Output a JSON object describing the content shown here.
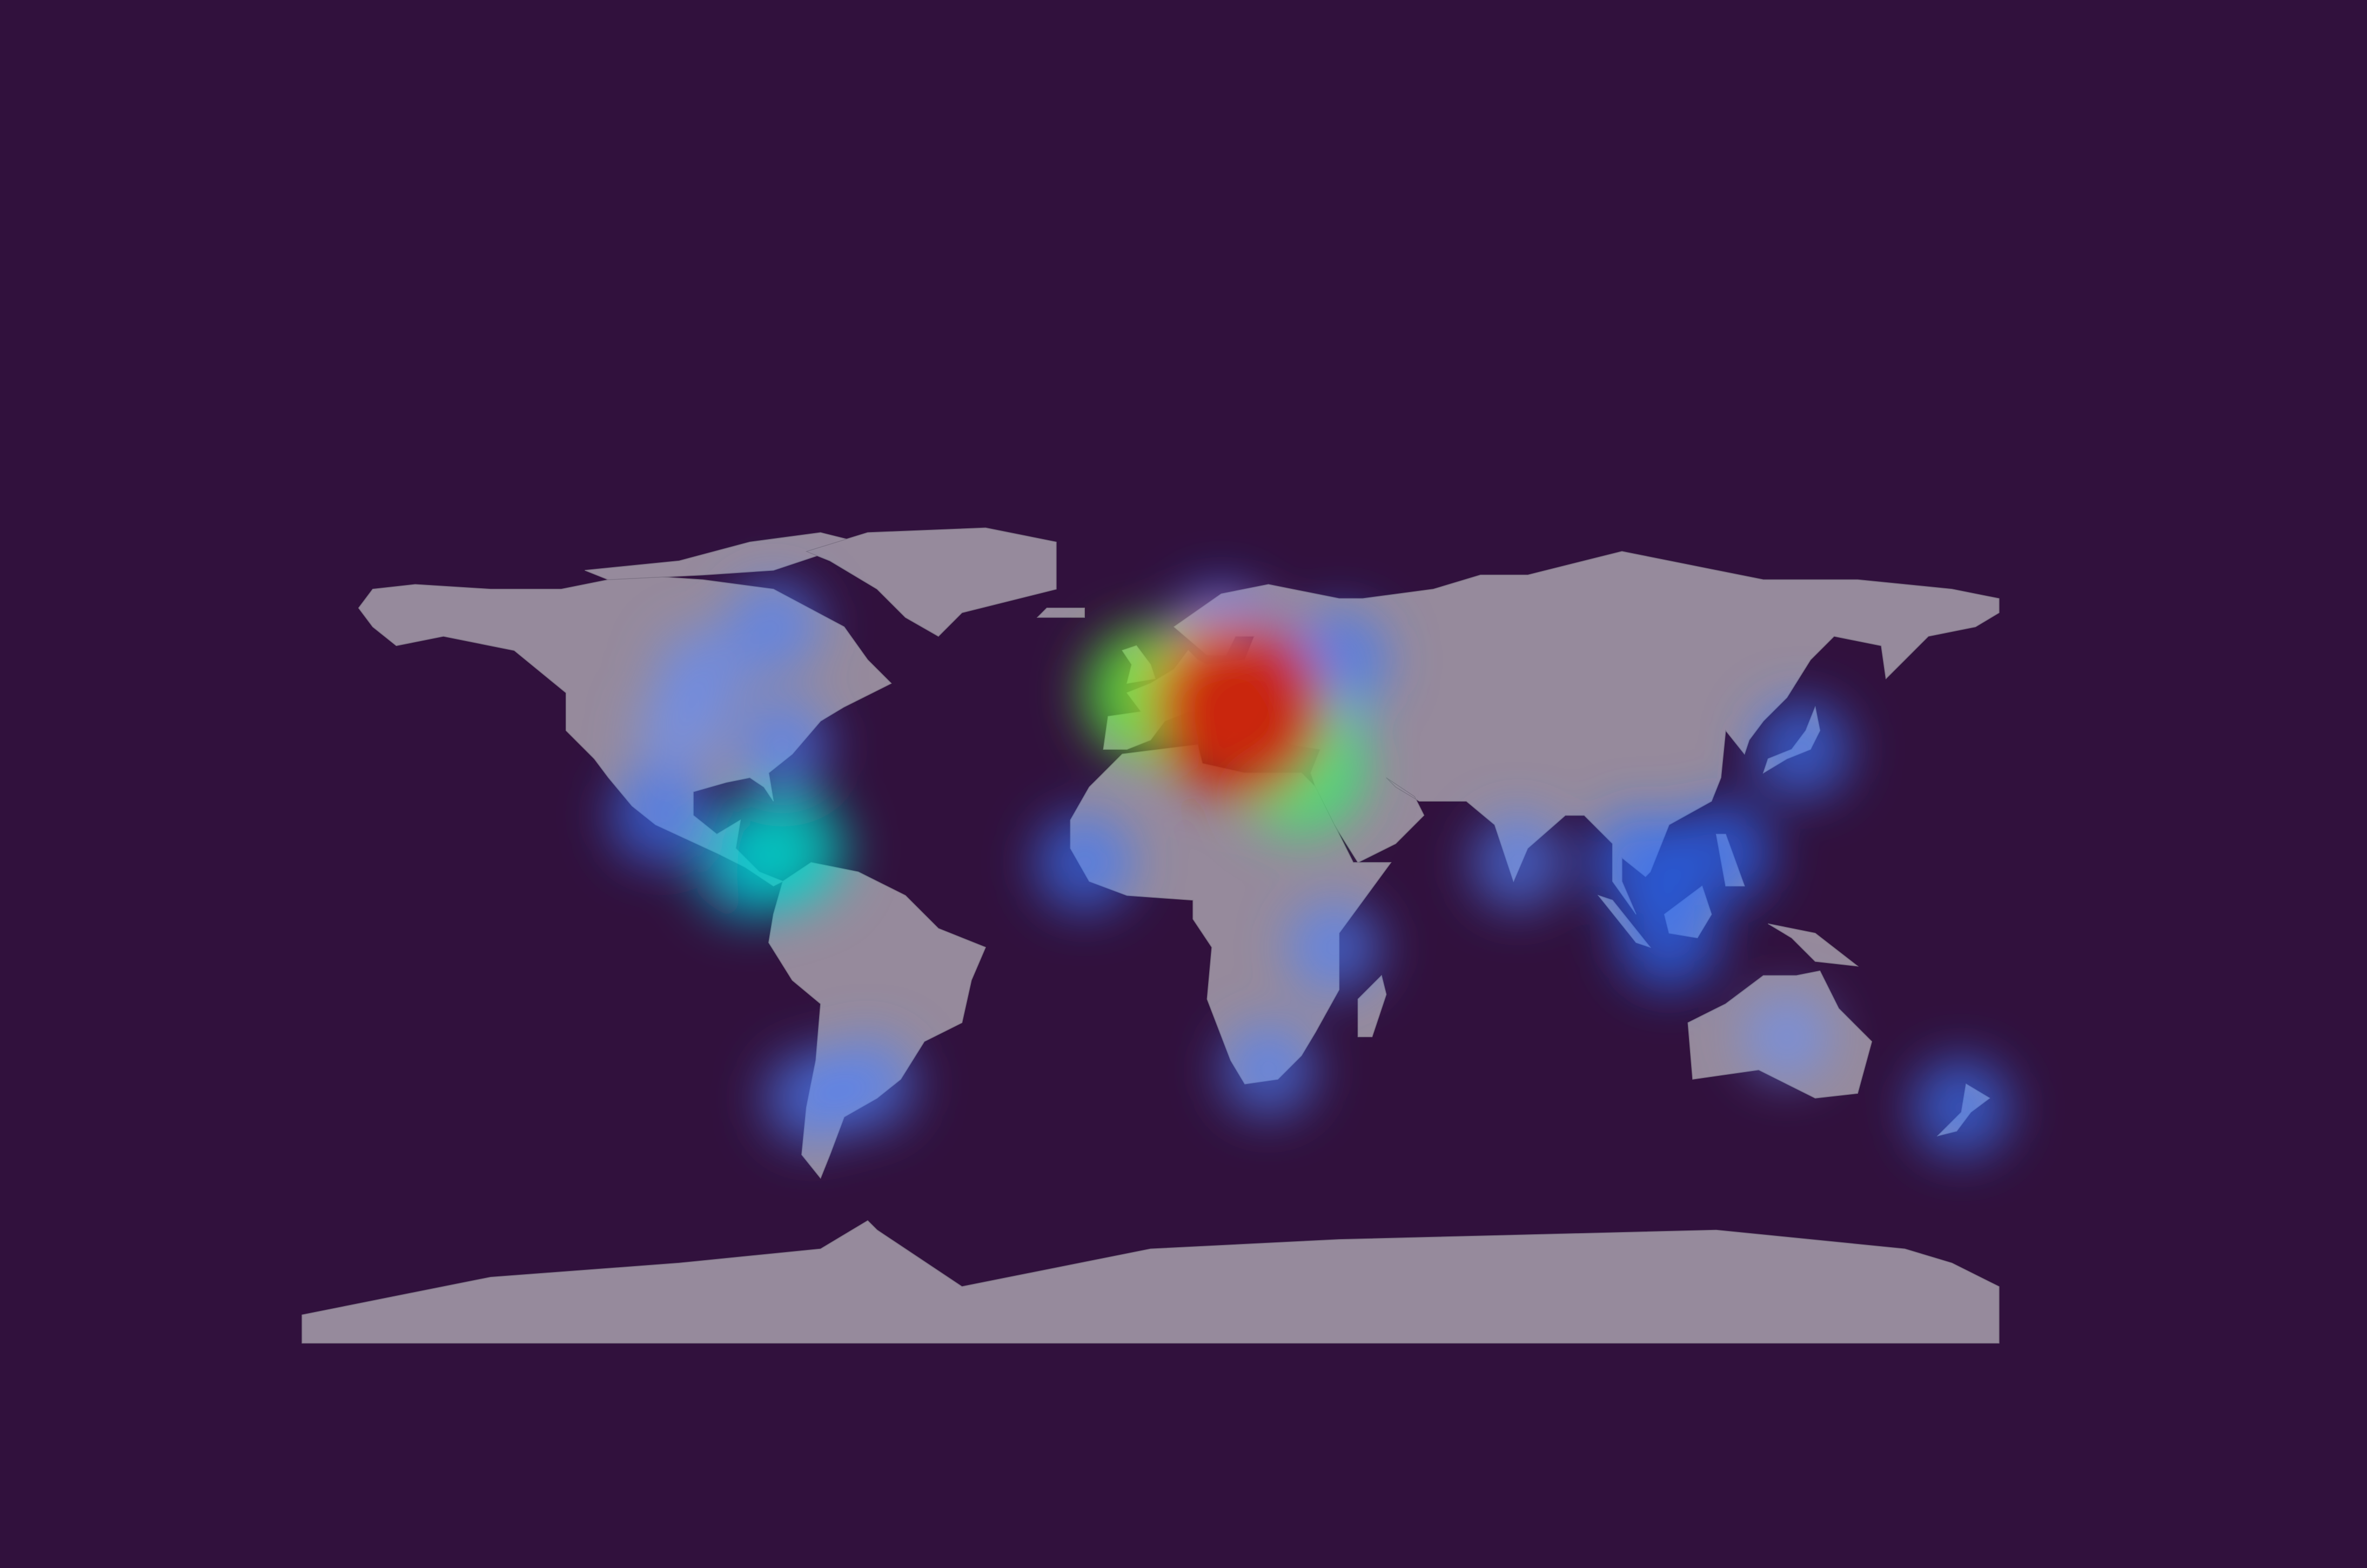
{
  "heatmap": {
    "points": [
      {
        "lon": 19,
        "lat": 44,
        "weight": 1
      },
      {
        "lon": 16,
        "lat": 48,
        "weight": 0.8
      },
      {
        "lon": 0,
        "lat": 48,
        "weight": 0.6
      },
      {
        "lon": 12,
        "lat": 43,
        "weight": 0.55
      },
      {
        "lon": 32,
        "lat": 31,
        "weight": 0.55
      },
      {
        "lon": 32,
        "lat": 39,
        "weight": 0.45
      },
      {
        "lon": 15,
        "lat": 60,
        "weight": 0.3
      },
      {
        "lon": 40,
        "lat": 55,
        "weight": 0.25
      },
      {
        "lon": -77,
        "lat": 15,
        "weight": 0.45
      },
      {
        "lon": -85,
        "lat": 12,
        "weight": 0.4
      },
      {
        "lon": -104,
        "lat": 22,
        "weight": 0.25
      },
      {
        "lon": -78,
        "lat": 37,
        "weight": 0.2
      },
      {
        "lon": -100,
        "lat": 40,
        "weight": 0.12
      },
      {
        "lon": -95,
        "lat": 52,
        "weight": 0.15
      },
      {
        "lon": -14,
        "lat": 12,
        "weight": 0.25
      },
      {
        "lon": 39,
        "lat": -6,
        "weight": 0.2
      },
      {
        "lon": 25,
        "lat": -32,
        "weight": 0.2
      },
      {
        "lon": 78,
        "lat": 12,
        "weight": 0.2
      },
      {
        "lon": 104,
        "lat": 12,
        "weight": 0.3
      },
      {
        "lon": 121,
        "lat": 14,
        "weight": 0.3
      },
      {
        "lon": 110,
        "lat": -4,
        "weight": 0.3
      },
      {
        "lon": 138,
        "lat": 36,
        "weight": 0.25
      },
      {
        "lon": 135,
        "lat": -25,
        "weight": 0.12
      },
      {
        "lon": 172,
        "lat": -40,
        "weight": 0.25
      },
      {
        "lon": -60,
        "lat": -35,
        "weight": 0.2
      },
      {
        "lon": -72,
        "lat": -38,
        "weight": 0.2
      },
      {
        "lon": -80,
        "lat": 62,
        "weight": 0.2
      }
    ]
  }
}
